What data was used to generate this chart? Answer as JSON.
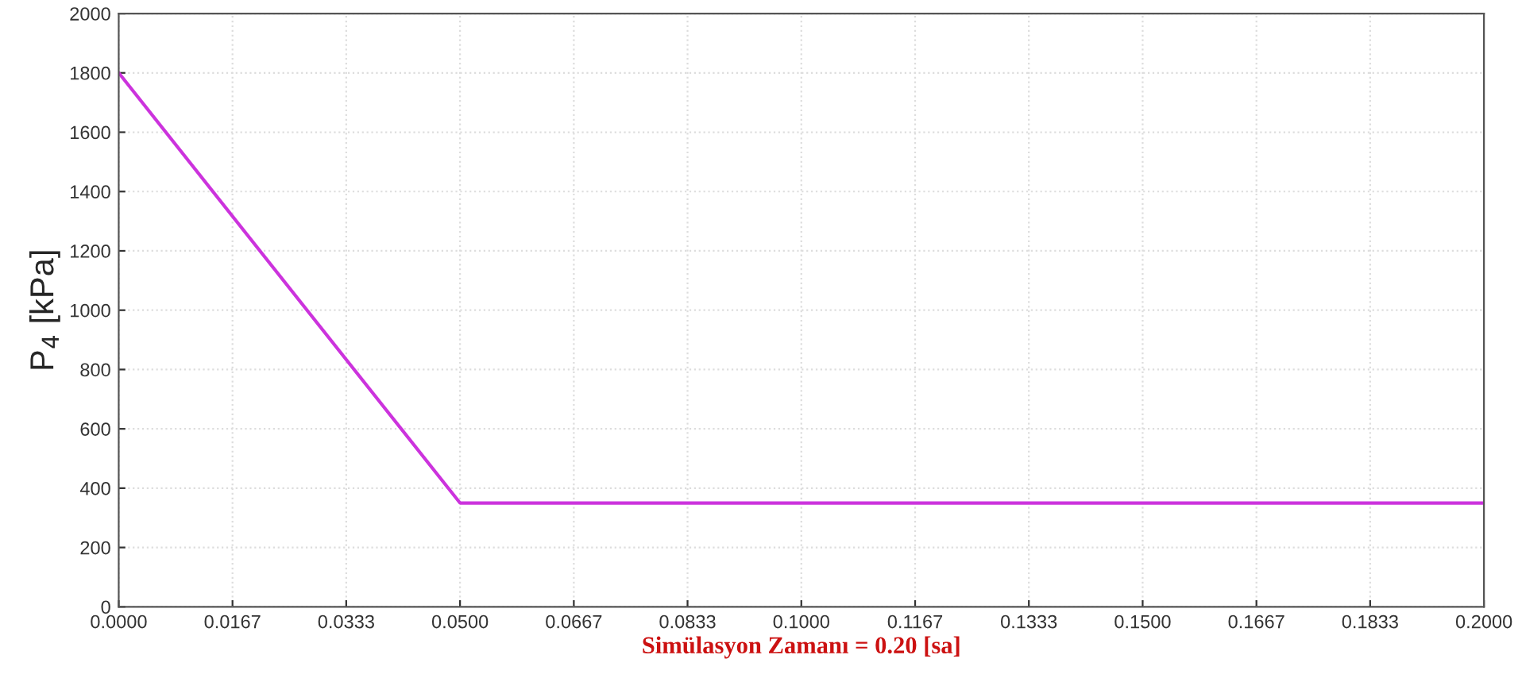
{
  "chart_data": {
    "type": "line",
    "xlabel": "Simülasyon Zamanı = 0.20 [sa]",
    "ylabel": "P$_{4}$ [kPa]",
    "x": [
      0.0,
      0.05,
      0.2
    ],
    "series": [
      {
        "color": "#cc33dd",
        "values": [
          1800,
          350,
          350
        ]
      }
    ],
    "xlim": [
      0,
      0.2
    ],
    "xticks": [
      {
        "value": 0,
        "label": "0.0000"
      },
      {
        "value": 0.01667,
        "label": "0.0167"
      },
      {
        "value": 0.03333,
        "label": "0.0333"
      },
      {
        "value": 0.05,
        "label": "0.0500"
      },
      {
        "value": 0.06667,
        "label": "0.0667"
      },
      {
        "value": 0.08333,
        "label": "0.0833"
      },
      {
        "value": 0.1,
        "label": "0.1000"
      },
      {
        "value": 0.11667,
        "label": "0.1167"
      },
      {
        "value": 0.13333,
        "label": "0.1333"
      },
      {
        "value": 0.15,
        "label": "0.1500"
      },
      {
        "value": 0.16667,
        "label": "0.1667"
      },
      {
        "value": 0.18333,
        "label": "0.1833"
      },
      {
        "value": 0.2,
        "label": "0.2000"
      }
    ],
    "ylim": [
      0,
      2000
    ],
    "yticks": [
      0,
      200,
      400,
      600,
      800,
      1000,
      1200,
      1400,
      1600,
      1800,
      2000
    ],
    "grid": true,
    "line_style": "solid"
  }
}
